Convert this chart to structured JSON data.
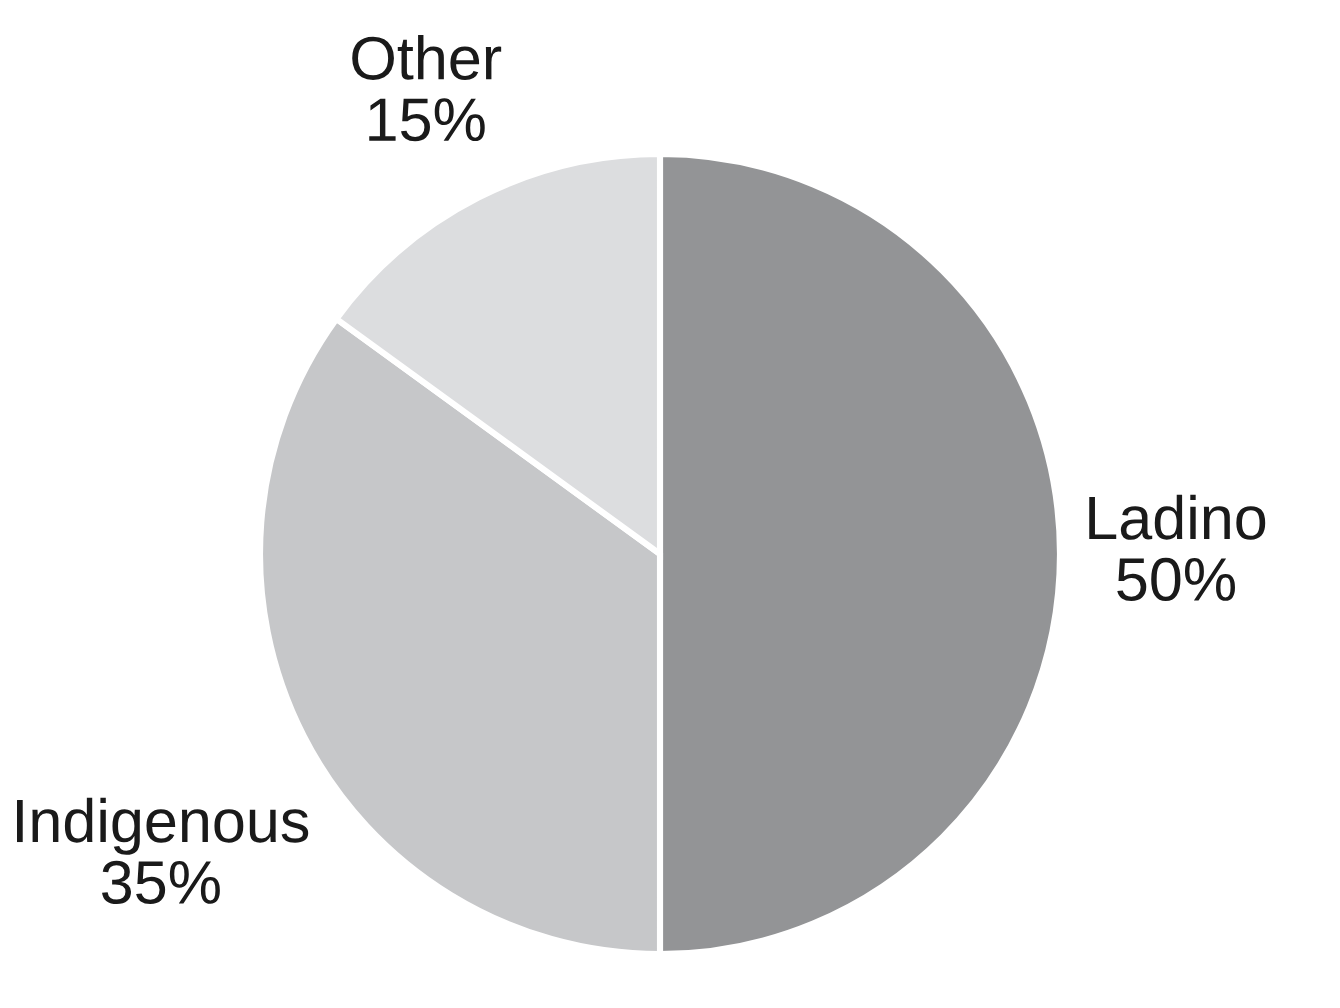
{
  "chart_data": {
    "type": "pie",
    "categories": [
      "Ladino",
      "Indigenous",
      "Other"
    ],
    "values": [
      50,
      35,
      15
    ],
    "colors": [
      "#939496",
      "#c6c7c9",
      "#dcdddf"
    ],
    "value_labels": [
      "50%",
      "35%",
      "15%"
    ]
  }
}
